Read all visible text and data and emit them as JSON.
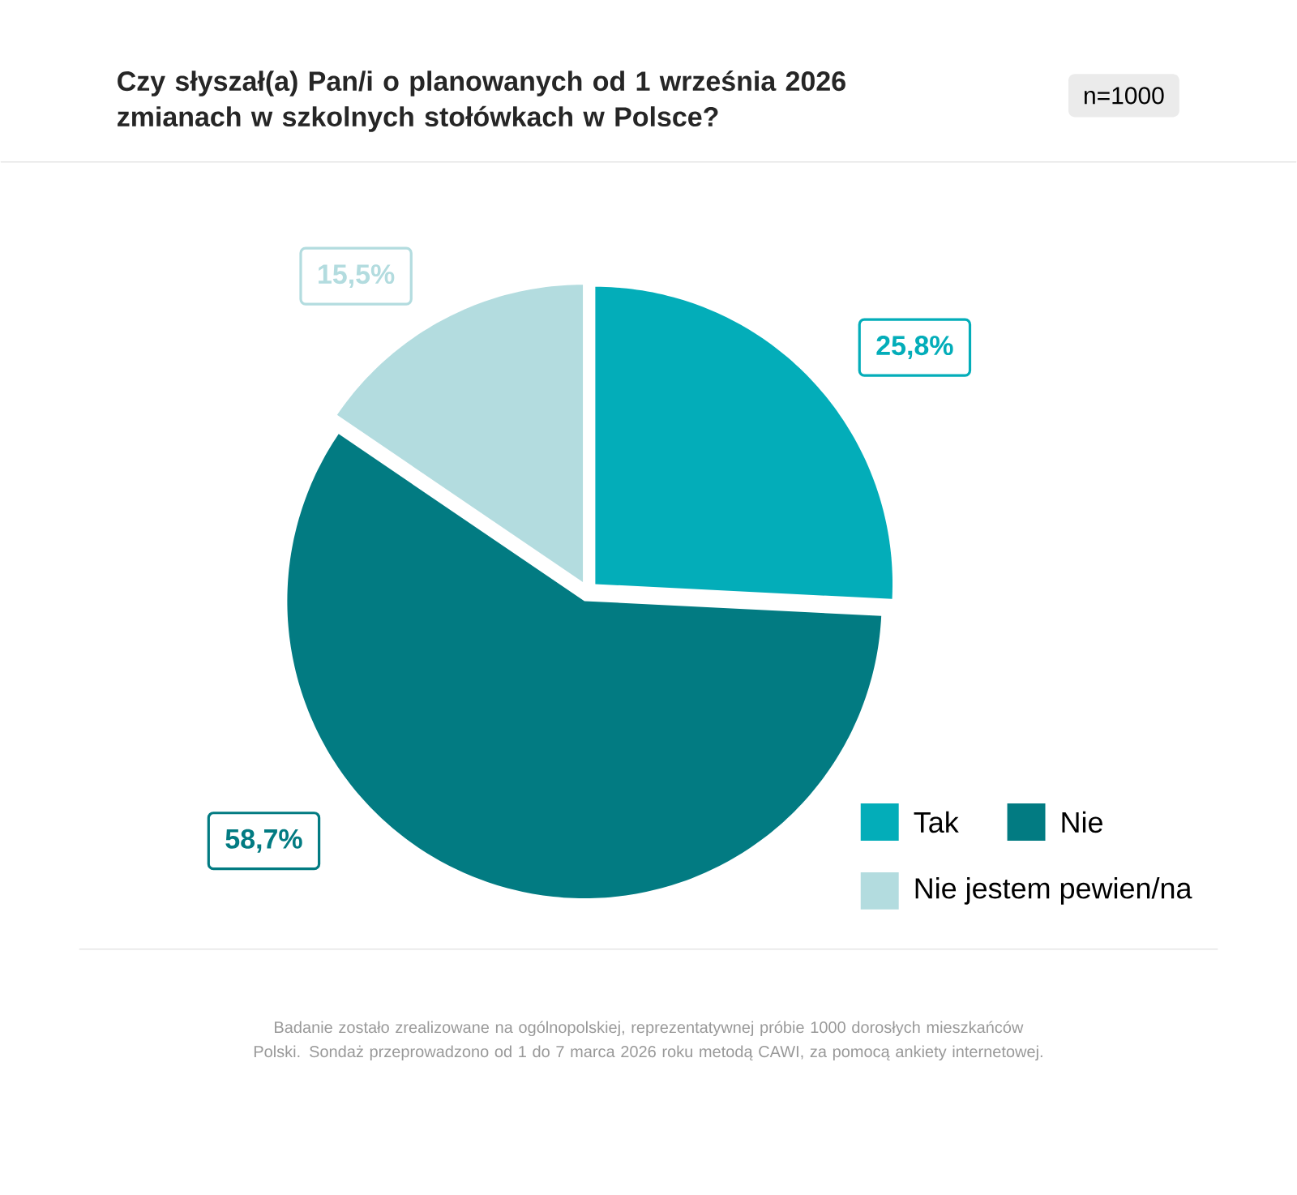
{
  "chart_data": {
    "type": "pie",
    "title": "Czy słyszał(a) Pan/i o planowanych od 1 września 2026 zmianach w szkolnych stołówkach w Polsce?",
    "categories": [
      "Tak",
      "Nie",
      "Nie jestem pewien/na"
    ],
    "values": [
      25.8,
      58.7,
      15.5
    ],
    "colors": [
      "#03adb9",
      "#027b82",
      "#b3dcdf"
    ],
    "value_labels": [
      "25,8%",
      "58,7%",
      "15,5%"
    ],
    "legend": "bottom right",
    "annotations": [
      "n=1000",
      "Badanie zostało zrealizowane na ogólnopolskiej, reprezentatywnej próbie 1000 dorosłych mieszkańców Polski. Sondaż przeprowadzono od 1 do 7 marca 2026 roku metodą CAWI, za pomocą ankiety internetowej."
    ]
  }
}
